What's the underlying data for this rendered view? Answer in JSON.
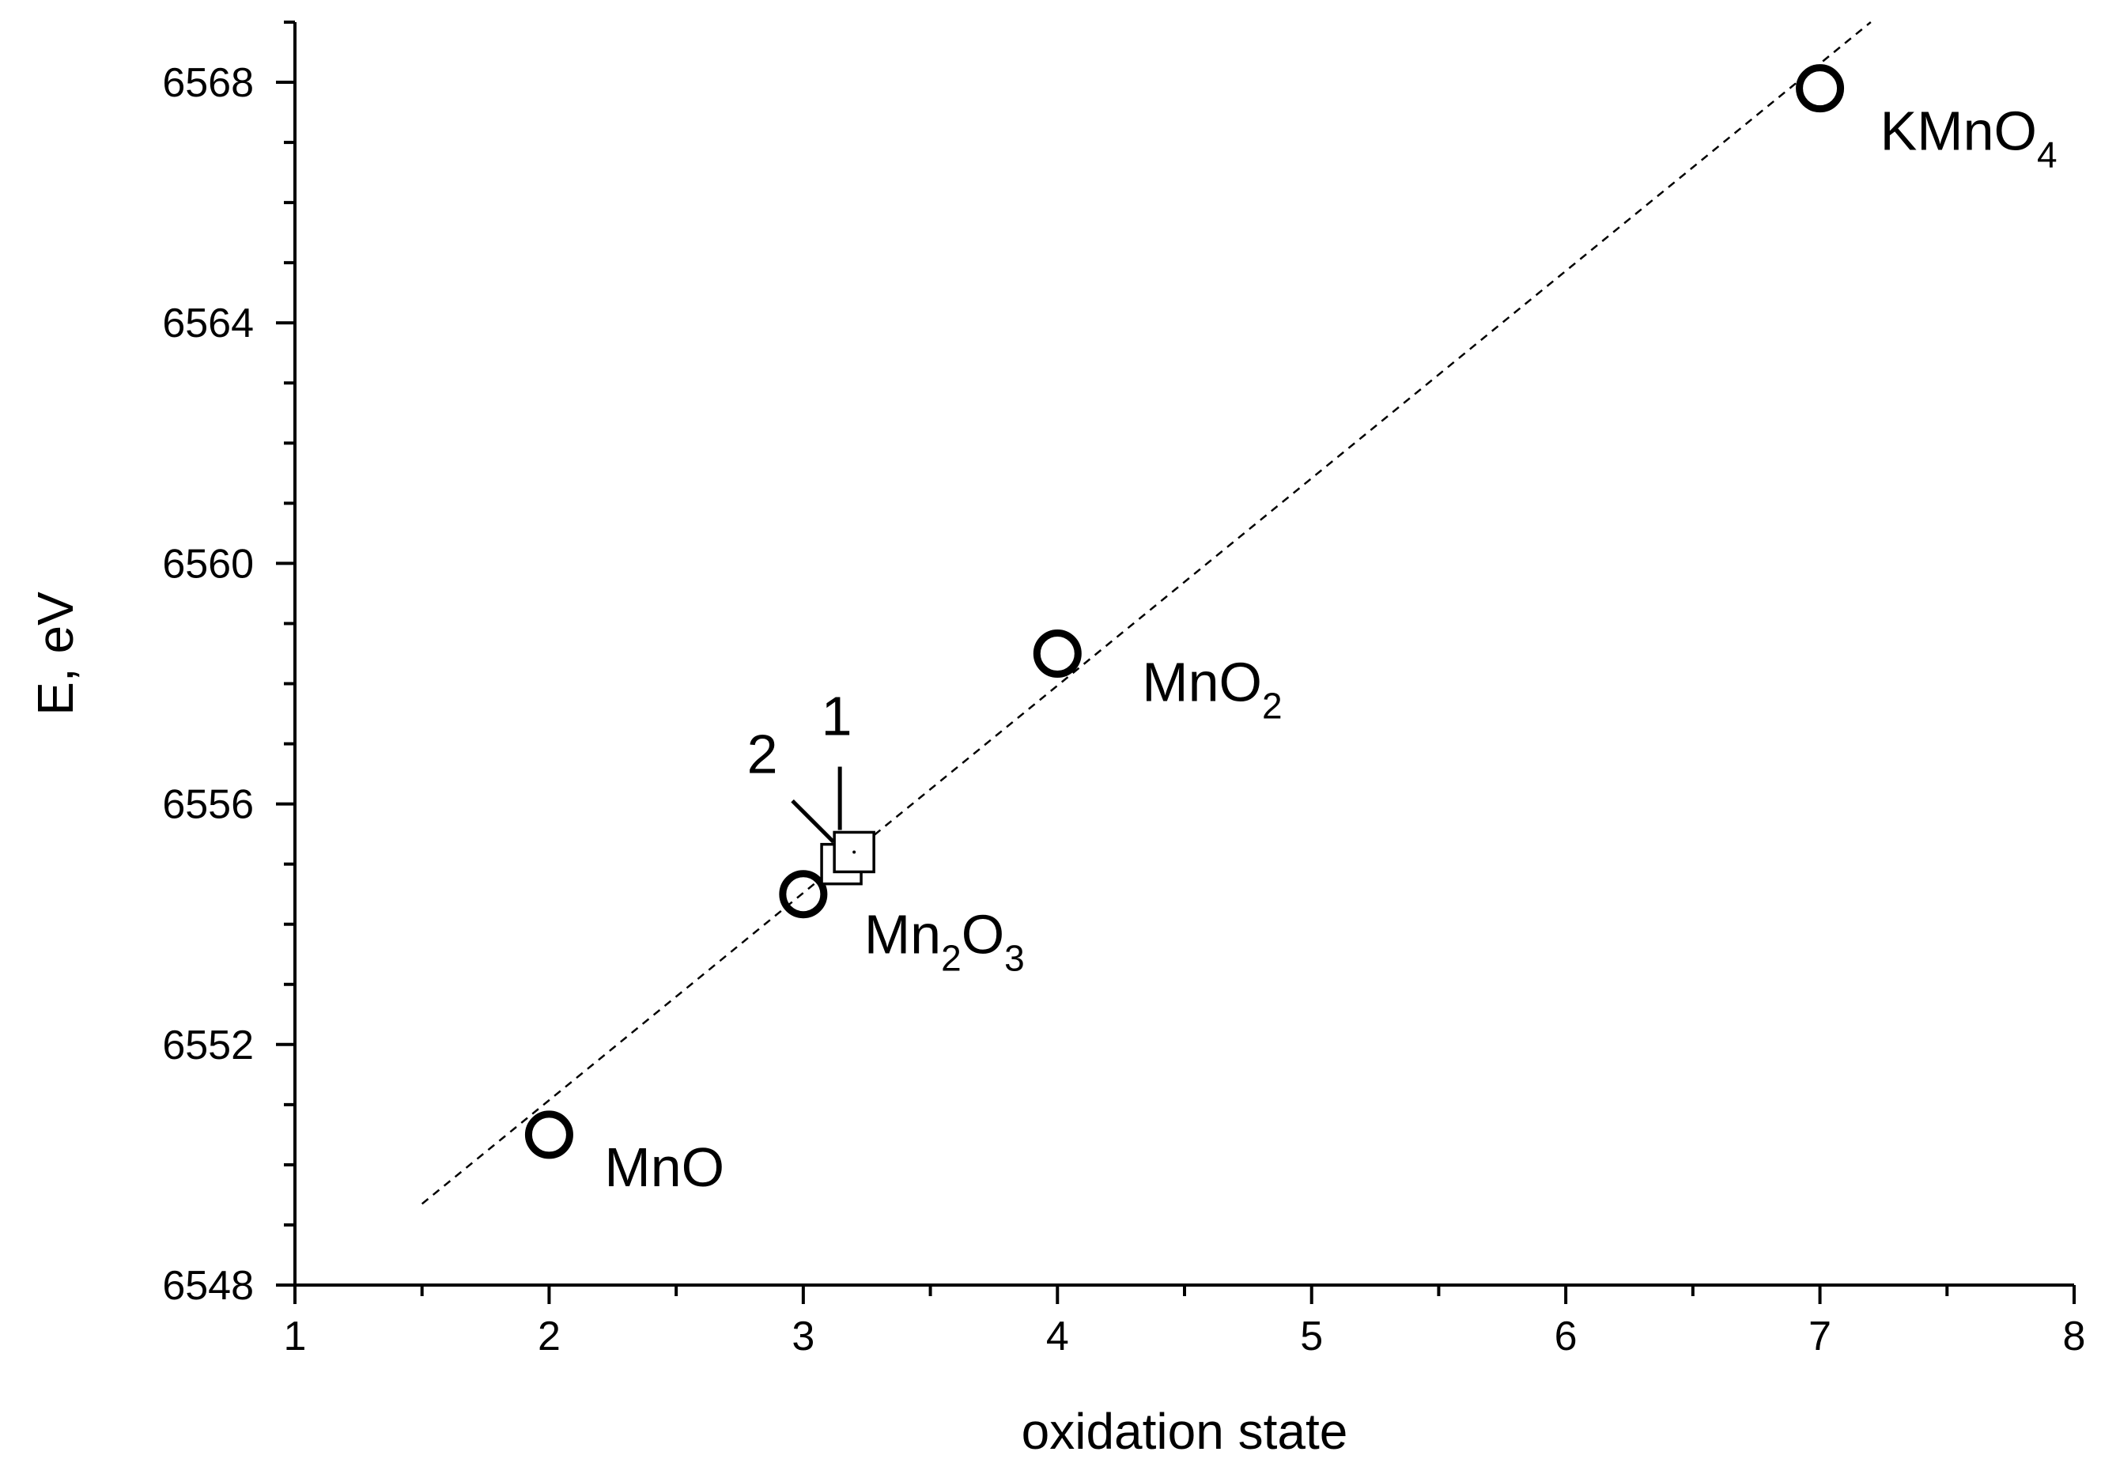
{
  "chart_data": {
    "type": "scatter",
    "xlabel": "oxidation state",
    "ylabel": "E, eV",
    "xlim": [
      1,
      8
    ],
    "ylim": [
      6548,
      6569
    ],
    "x_ticks": [
      "1",
      "2",
      "3",
      "4",
      "5",
      "6",
      "7",
      "8"
    ],
    "y_ticks": [
      "6548",
      "6552",
      "6556",
      "6560",
      "6564",
      "6568"
    ],
    "grid": false,
    "legend": "none",
    "series": [
      {
        "marker": "circle",
        "points": [
          {
            "x": 2,
            "y": 6550.5,
            "label": "MnO",
            "label_main": "MnO",
            "label_sub": ""
          },
          {
            "x": 3,
            "y": 6554.5,
            "label": "Mn2O3",
            "label_main": "Mn",
            "label_sub": "2",
            "label_main2": "O",
            "label_sub2": "3"
          },
          {
            "x": 4,
            "y": 6558.5,
            "label": "MnO2",
            "label_main": "MnO",
            "label_sub": "2"
          },
          {
            "x": 7,
            "y": 6567.9,
            "label": "KMnO4",
            "label_main": "KMnO",
            "label_sub": "4"
          }
        ]
      },
      {
        "marker": "square",
        "points": [
          {
            "x": 3.2,
            "y": 6555.2,
            "label": "1"
          },
          {
            "x": 3.15,
            "y": 6555.0,
            "label": "2"
          }
        ]
      }
    ],
    "fit_line": {
      "style": "dashed",
      "x": [
        1.5,
        7.2
      ],
      "y": [
        6549.35,
        6569.0
      ]
    }
  }
}
